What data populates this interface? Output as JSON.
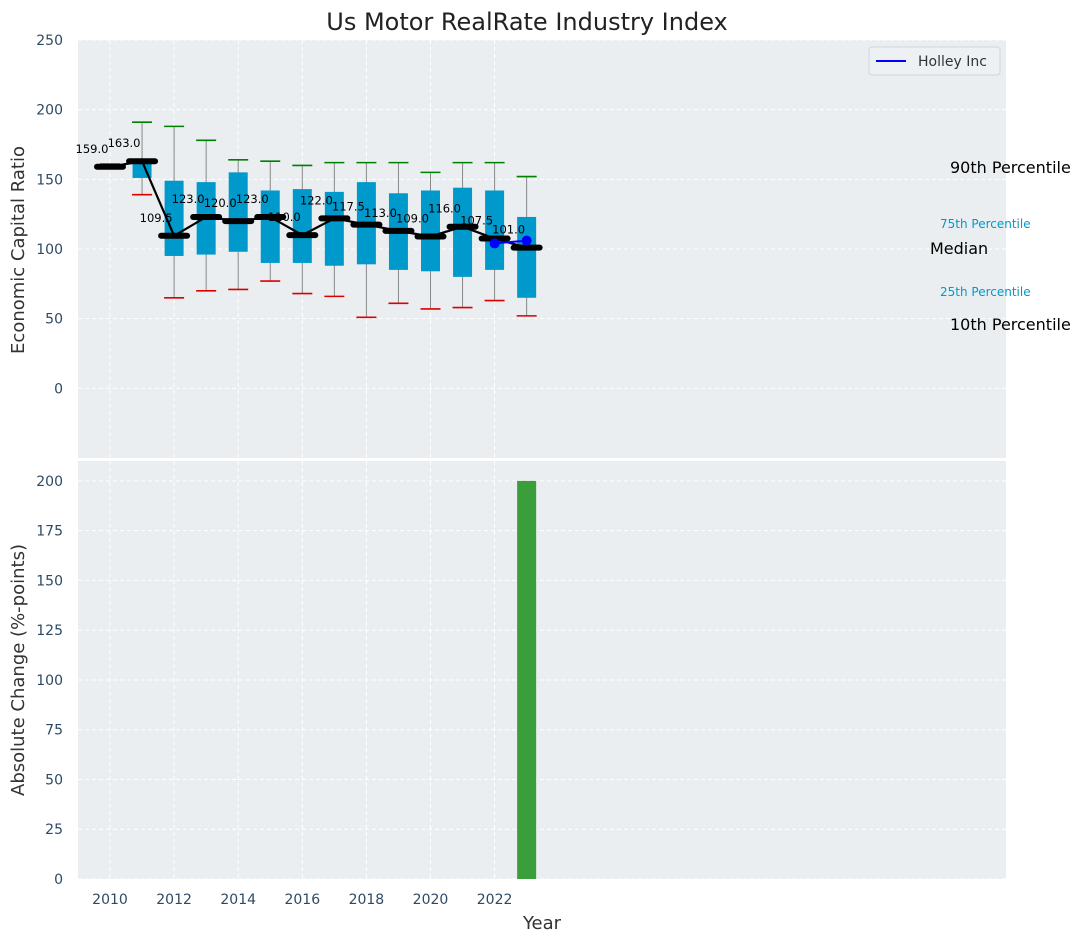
{
  "chart_data": [
    {
      "type": "box",
      "title": "Us Motor RealRate Industry Index",
      "xlabel": "",
      "ylabel": "Economic Capital Ratio",
      "ylim": [
        -50,
        250
      ],
      "yticks": [
        0,
        50,
        100,
        150,
        200,
        250
      ],
      "grid": true,
      "legend": {
        "placement": "top-right",
        "entries": [
          "Holley Inc"
        ]
      },
      "percentile_labels": {
        "p90": "90th Percentile",
        "p75": "75th Percentile",
        "median": "Median",
        "p25": "25th Percentile",
        "p10": "10th Percentile"
      },
      "years": [
        2010,
        2011,
        2012,
        2013,
        2014,
        2015,
        2016,
        2017,
        2018,
        2019,
        2020,
        2021,
        2022,
        2023
      ],
      "p10": [
        159,
        139,
        65,
        70,
        71,
        77,
        68,
        66,
        51,
        61,
        57,
        58,
        63,
        52
      ],
      "q1": [
        159,
        151,
        95,
        96,
        98,
        90,
        90,
        88,
        89,
        85,
        84,
        80,
        85,
        65
      ],
      "median": [
        159.0,
        163.0,
        109.5,
        123.0,
        120.0,
        123.0,
        110.0,
        122.0,
        117.5,
        113.0,
        109.0,
        116.0,
        107.5,
        101.0
      ],
      "median_labels": [
        "159.0",
        "163.0",
        "109.5",
        "123.0",
        "120.0",
        "123.0",
        "110.0",
        "122.0",
        "117.5",
        "113.0",
        "109.0",
        "116.0",
        "107.5",
        "101.0"
      ],
      "q3": [
        159,
        163,
        149,
        148,
        155,
        142,
        143,
        141,
        148,
        140,
        142,
        144,
        142,
        123
      ],
      "p90": [
        161,
        191,
        188,
        178,
        164,
        163,
        160,
        162,
        162,
        162,
        155,
        162,
        162,
        152
      ],
      "company_series": {
        "name": "Holley Inc",
        "color": "#0000ff",
        "points": [
          [
            2022,
            104
          ],
          [
            2023,
            106
          ]
        ]
      },
      "colors": {
        "box": "#0099cc",
        "whisker_high": "#008000",
        "whisker_low": "#dd0000",
        "median_line": "#000000",
        "p25_p75_label": "#0099cc"
      }
    },
    {
      "type": "bar",
      "xlabel": "Year",
      "ylabel": "Absolute Change (%-points)",
      "ylim": [
        0,
        210
      ],
      "yticks": [
        0,
        25,
        50,
        75,
        100,
        125,
        150,
        175,
        200
      ],
      "xticks": [
        2010,
        2012,
        2014,
        2016,
        2018,
        2020,
        2022
      ],
      "xlim": [
        2009.5,
        2024
      ],
      "bars": [
        {
          "x": 2023,
          "value": 200
        }
      ],
      "colors": {
        "bar": "#3a9e3a"
      }
    }
  ]
}
